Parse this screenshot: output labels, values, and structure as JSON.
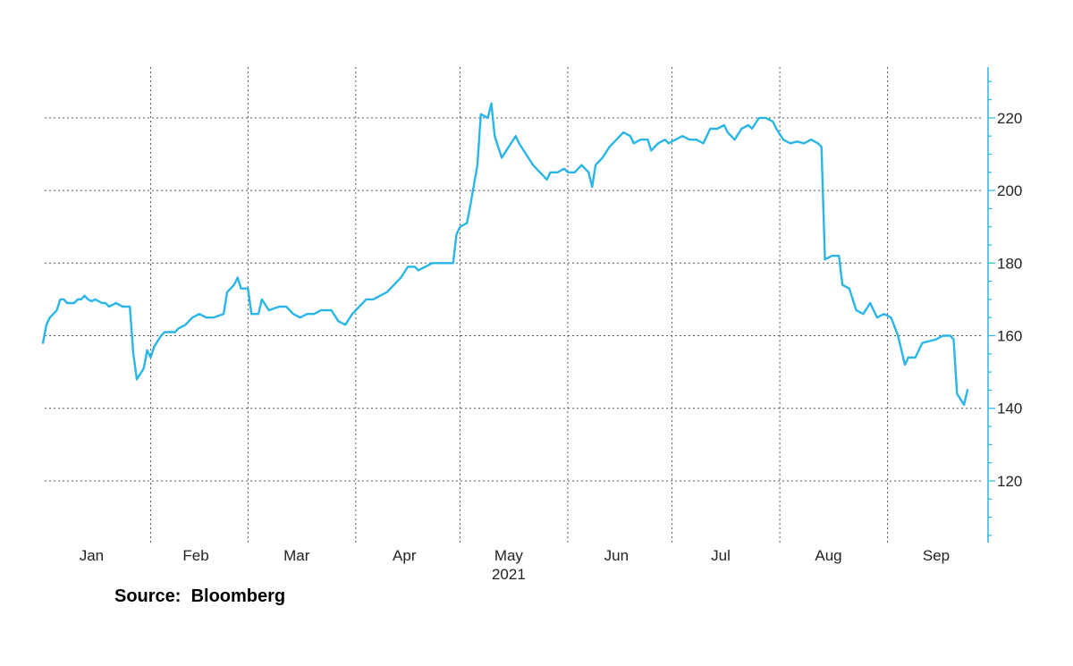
{
  "source_note": "Source:  Bloomberg",
  "colors": {
    "line": "#29b6e6",
    "grid": "#555555",
    "text": "#222222",
    "background": "#ffffff"
  },
  "chart_data": {
    "type": "line",
    "title": "",
    "xlabel": "",
    "ylabel": "",
    "year_label": "2021",
    "x_range": [
      "2021-01-01",
      "2021-09-24"
    ],
    "ylim": [
      103,
      234
    ],
    "y_ticks": [
      120,
      140,
      160,
      180,
      200,
      220
    ],
    "x_ticks": [
      {
        "label": "Jan",
        "date": "2021-01-15"
      },
      {
        "label": "Feb",
        "date": "2021-02-14"
      },
      {
        "label": "Mar",
        "date": "2021-03-15"
      },
      {
        "label": "Apr",
        "date": "2021-04-15"
      },
      {
        "label": "May",
        "date": "2021-05-15"
      },
      {
        "label": "Jun",
        "date": "2021-06-15"
      },
      {
        "label": "Jul",
        "date": "2021-07-15"
      },
      {
        "label": "Aug",
        "date": "2021-08-15"
      },
      {
        "label": "Sep",
        "date": "2021-09-15"
      }
    ],
    "vertical_gridlines": [
      "2021-02-01",
      "2021-03-01",
      "2021-04-01",
      "2021-05-01",
      "2021-06-01",
      "2021-07-01",
      "2021-08-01",
      "2021-09-01"
    ],
    "grid": true,
    "legend": "none",
    "series": [
      {
        "values": [
          [
            "2021-01-01",
            158
          ],
          [
            "2021-01-02",
            163
          ],
          [
            "2021-01-03",
            165
          ],
          [
            "2021-01-04",
            166
          ],
          [
            "2021-01-05",
            167
          ],
          [
            "2021-01-06",
            170
          ],
          [
            "2021-01-07",
            170
          ],
          [
            "2021-01-08",
            169
          ],
          [
            "2021-01-09",
            169
          ],
          [
            "2021-01-10",
            169
          ],
          [
            "2021-01-11",
            170
          ],
          [
            "2021-01-12",
            170
          ],
          [
            "2021-01-13",
            171
          ],
          [
            "2021-01-14",
            170
          ],
          [
            "2021-01-15",
            169.5
          ],
          [
            "2021-01-16",
            170
          ],
          [
            "2021-01-17",
            169.5
          ],
          [
            "2021-01-18",
            169
          ],
          [
            "2021-01-19",
            169
          ],
          [
            "2021-01-20",
            168
          ],
          [
            "2021-01-22",
            169
          ],
          [
            "2021-01-24",
            168
          ],
          [
            "2021-01-26",
            168
          ],
          [
            "2021-01-27",
            155
          ],
          [
            "2021-01-28",
            148
          ],
          [
            "2021-01-30",
            151
          ],
          [
            "2021-01-31",
            156
          ],
          [
            "2021-02-01",
            154
          ],
          [
            "2021-02-02",
            157
          ],
          [
            "2021-02-04",
            160
          ],
          [
            "2021-02-05",
            161
          ],
          [
            "2021-02-08",
            161
          ],
          [
            "2021-02-09",
            162
          ],
          [
            "2021-02-11",
            163
          ],
          [
            "2021-02-13",
            165
          ],
          [
            "2021-02-15",
            166
          ],
          [
            "2021-02-17",
            165
          ],
          [
            "2021-02-19",
            165
          ],
          [
            "2021-02-22",
            166
          ],
          [
            "2021-02-23",
            172
          ],
          [
            "2021-02-25",
            174
          ],
          [
            "2021-02-26",
            176
          ],
          [
            "2021-02-27",
            173
          ],
          [
            "2021-03-01",
            173
          ],
          [
            "2021-03-02",
            166
          ],
          [
            "2021-03-04",
            166
          ],
          [
            "2021-03-05",
            170
          ],
          [
            "2021-03-07",
            167
          ],
          [
            "2021-03-10",
            168
          ],
          [
            "2021-03-12",
            168
          ],
          [
            "2021-03-14",
            166
          ],
          [
            "2021-03-16",
            165
          ],
          [
            "2021-03-18",
            166
          ],
          [
            "2021-03-20",
            166
          ],
          [
            "2021-03-22",
            167
          ],
          [
            "2021-03-25",
            167
          ],
          [
            "2021-03-27",
            164
          ],
          [
            "2021-03-29",
            163
          ],
          [
            "2021-03-31",
            166
          ],
          [
            "2021-04-02",
            168
          ],
          [
            "2021-04-04",
            170
          ],
          [
            "2021-04-06",
            170
          ],
          [
            "2021-04-08",
            171
          ],
          [
            "2021-04-10",
            172
          ],
          [
            "2021-04-12",
            174
          ],
          [
            "2021-04-14",
            176
          ],
          [
            "2021-04-16",
            179
          ],
          [
            "2021-04-18",
            179
          ],
          [
            "2021-04-19",
            178
          ],
          [
            "2021-04-21",
            179
          ],
          [
            "2021-04-23",
            180
          ],
          [
            "2021-04-25",
            180
          ],
          [
            "2021-04-29",
            180
          ],
          [
            "2021-04-30",
            188
          ],
          [
            "2021-05-01",
            190
          ],
          [
            "2021-05-03",
            191
          ],
          [
            "2021-05-04",
            196
          ],
          [
            "2021-05-06",
            207
          ],
          [
            "2021-05-07",
            221
          ],
          [
            "2021-05-09",
            220
          ],
          [
            "2021-05-10",
            224
          ],
          [
            "2021-05-11",
            215
          ],
          [
            "2021-05-13",
            209
          ],
          [
            "2021-05-15",
            212
          ],
          [
            "2021-05-17",
            215
          ],
          [
            "2021-05-18",
            213
          ],
          [
            "2021-05-20",
            210
          ],
          [
            "2021-05-22",
            207
          ],
          [
            "2021-05-24",
            205
          ],
          [
            "2021-05-26",
            203
          ],
          [
            "2021-05-27",
            205
          ],
          [
            "2021-05-29",
            205
          ],
          [
            "2021-05-31",
            206
          ],
          [
            "2021-06-01",
            205
          ],
          [
            "2021-06-03",
            205
          ],
          [
            "2021-06-05",
            207
          ],
          [
            "2021-06-07",
            205
          ],
          [
            "2021-06-08",
            201
          ],
          [
            "2021-06-09",
            207
          ],
          [
            "2021-06-11",
            209
          ],
          [
            "2021-06-13",
            212
          ],
          [
            "2021-06-15",
            214
          ],
          [
            "2021-06-17",
            216
          ],
          [
            "2021-06-19",
            215
          ],
          [
            "2021-06-20",
            213
          ],
          [
            "2021-06-22",
            214
          ],
          [
            "2021-06-24",
            214
          ],
          [
            "2021-06-25",
            211
          ],
          [
            "2021-06-27",
            213
          ],
          [
            "2021-06-29",
            214
          ],
          [
            "2021-06-30",
            213
          ],
          [
            "2021-07-02",
            214
          ],
          [
            "2021-07-04",
            215
          ],
          [
            "2021-07-06",
            214
          ],
          [
            "2021-07-08",
            214
          ],
          [
            "2021-07-10",
            213
          ],
          [
            "2021-07-12",
            217
          ],
          [
            "2021-07-14",
            217
          ],
          [
            "2021-07-16",
            218
          ],
          [
            "2021-07-17",
            216
          ],
          [
            "2021-07-19",
            214
          ],
          [
            "2021-07-21",
            217
          ],
          [
            "2021-07-23",
            218
          ],
          [
            "2021-07-24",
            217
          ],
          [
            "2021-07-26",
            220
          ],
          [
            "2021-07-28",
            220
          ],
          [
            "2021-07-30",
            219
          ],
          [
            "2021-07-31",
            217
          ],
          [
            "2021-08-02",
            214
          ],
          [
            "2021-08-04",
            213
          ],
          [
            "2021-08-06",
            213.5
          ],
          [
            "2021-08-08",
            213
          ],
          [
            "2021-08-10",
            214
          ],
          [
            "2021-08-12",
            213
          ],
          [
            "2021-08-13",
            212
          ],
          [
            "2021-08-14",
            181
          ],
          [
            "2021-08-16",
            182
          ],
          [
            "2021-08-18",
            182
          ],
          [
            "2021-08-19",
            174
          ],
          [
            "2021-08-21",
            173
          ],
          [
            "2021-08-23",
            167
          ],
          [
            "2021-08-25",
            166
          ],
          [
            "2021-08-27",
            169
          ],
          [
            "2021-08-29",
            165
          ],
          [
            "2021-08-31",
            166
          ],
          [
            "2021-09-02",
            165
          ],
          [
            "2021-09-04",
            160
          ],
          [
            "2021-09-06",
            152
          ],
          [
            "2021-09-07",
            154
          ],
          [
            "2021-09-09",
            154
          ],
          [
            "2021-09-11",
            158
          ],
          [
            "2021-09-13",
            158.5
          ],
          [
            "2021-09-15",
            159
          ],
          [
            "2021-09-17",
            160
          ],
          [
            "2021-09-19",
            160
          ],
          [
            "2021-09-20",
            159
          ],
          [
            "2021-09-21",
            144
          ],
          [
            "2021-09-23",
            141
          ],
          [
            "2021-09-24",
            145
          ]
        ]
      }
    ]
  }
}
